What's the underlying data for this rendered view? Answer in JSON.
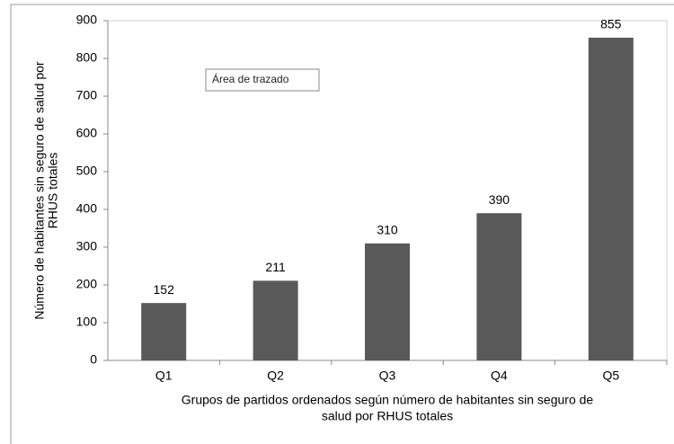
{
  "chart_data": {
    "type": "bar",
    "y_label": [
      "Número de habitantes sin seguro de salud por",
      "RHUS totales"
    ],
    "x_label": [
      "Grupos de partidos ordenados según  número de habitantes sin seguro de",
      "salud por RHUS totales"
    ],
    "annotation": "Área de trazado",
    "categories": [
      "Q1",
      "Q2",
      "Q3",
      "Q4",
      "Q5"
    ],
    "values": [
      152,
      211,
      310,
      390,
      855
    ],
    "color": "#595959",
    "ylim": [
      0,
      900
    ],
    "yticks": [
      0,
      100,
      200,
      300,
      400,
      500,
      600,
      700,
      800,
      900
    ],
    "grid": false
  }
}
